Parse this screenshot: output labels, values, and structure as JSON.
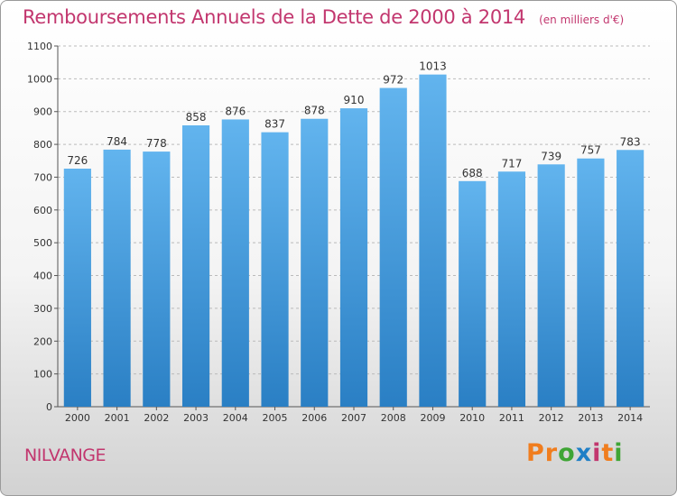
{
  "chart_data": {
    "type": "bar",
    "title": "Remboursements Annuels de la Dette de 2000 à 2014",
    "unit": "(en milliers d'€)",
    "categories": [
      "2000",
      "2001",
      "2002",
      "2003",
      "2004",
      "2005",
      "2006",
      "2007",
      "2008",
      "2009",
      "2010",
      "2011",
      "2012",
      "2013",
      "2014"
    ],
    "values": [
      726,
      784,
      778,
      858,
      876,
      837,
      878,
      910,
      972,
      1013,
      688,
      717,
      739,
      757,
      783
    ],
    "ylim": [
      0,
      1100
    ],
    "yticks": [
      0,
      100,
      200,
      300,
      400,
      500,
      600,
      700,
      800,
      900,
      1000,
      1100
    ],
    "grid": true,
    "bar_color_top": "#62b4ee",
    "bar_color_bottom": "#2a7fc4"
  },
  "footer": {
    "city": "NILVANGE",
    "brand_letters": [
      "P",
      "r",
      "o",
      "x",
      "i",
      "t",
      "i"
    ],
    "brand_colors": [
      "#f07d1e",
      "#f07d1e",
      "#3fa535",
      "#1f7fc6",
      "#c2366e",
      "#f07d1e",
      "#3fa535"
    ]
  },
  "colors": {
    "accent": "#c2366e",
    "grid": "#bbbbbb"
  }
}
